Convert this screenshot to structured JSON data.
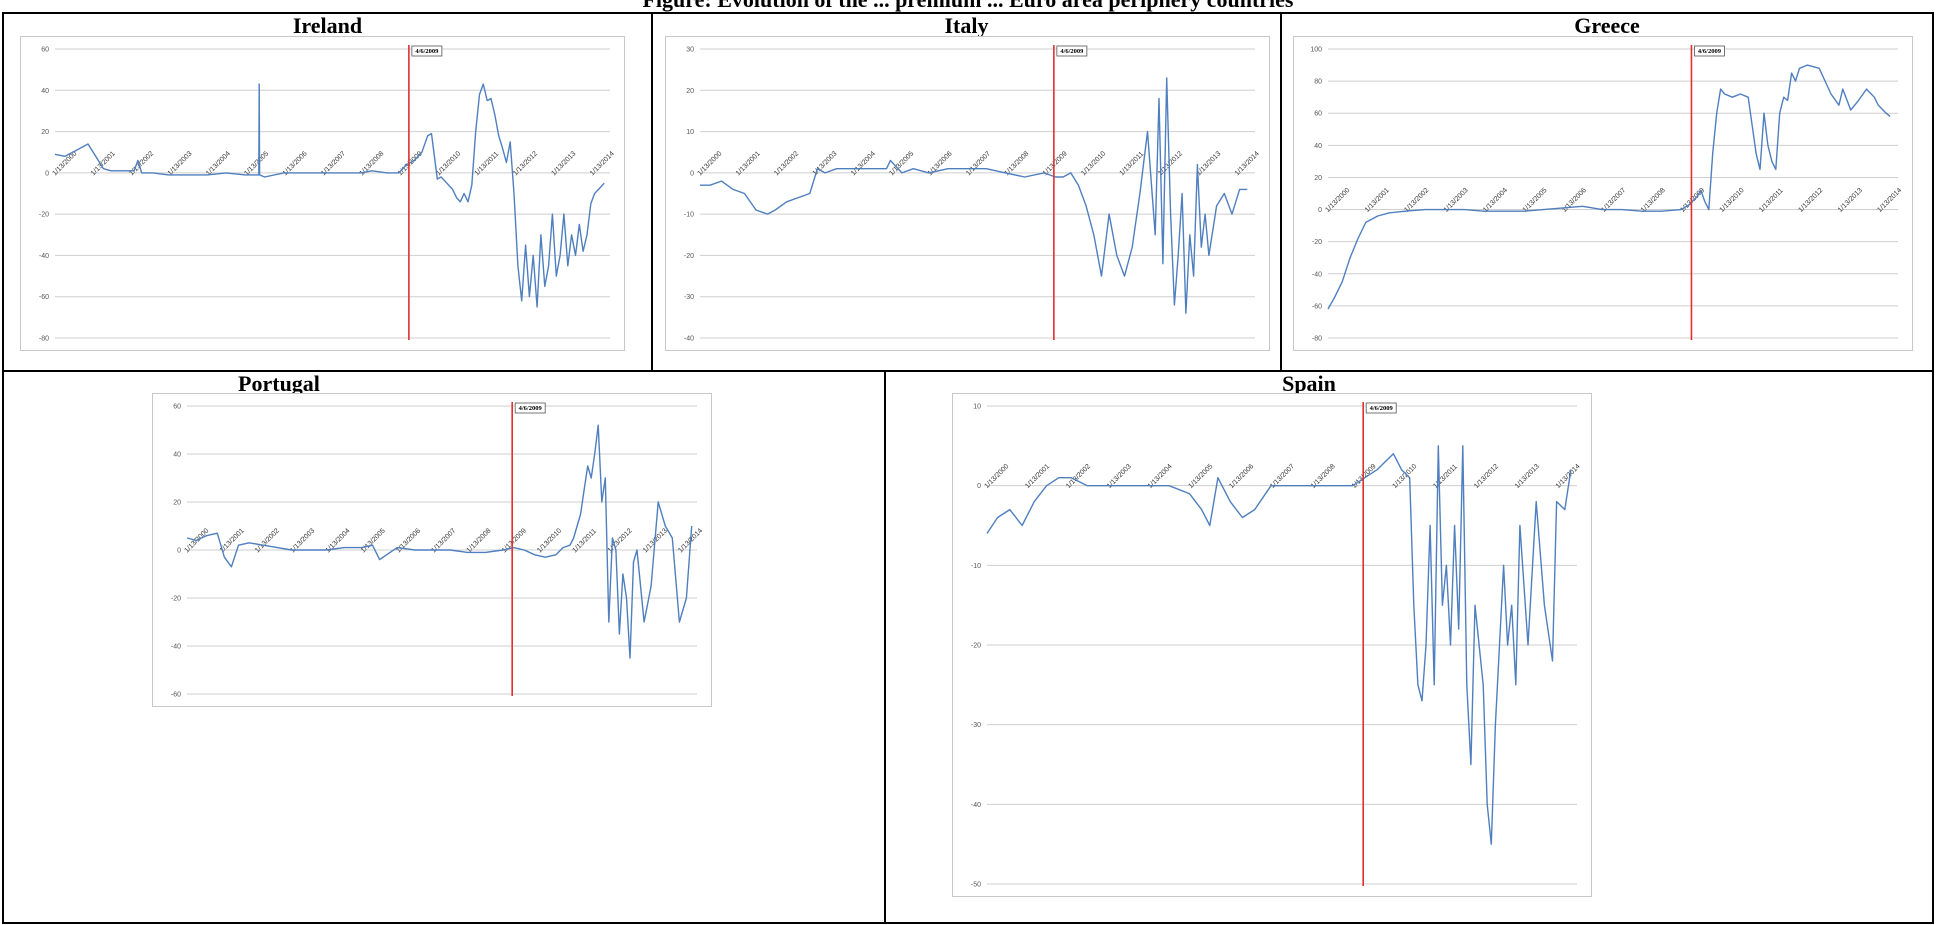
{
  "page": {
    "cutoff_heading": "Figure: Evolution of the ... premium ... Euro area periphery countries"
  },
  "chart_data": [
    {
      "type": "line",
      "title": "Ireland",
      "ylim": [
        -80,
        60
      ],
      "yticks": [
        -80,
        -60,
        -40,
        -20,
        0,
        20,
        40,
        60
      ],
      "x_tick_labels": [
        "1/13/2000",
        "1/13/2001",
        "1/13/2002",
        "1/13/2003",
        "1/13/2004",
        "1/13/2005",
        "1/13/2006",
        "1/13/2007",
        "1/13/2008",
        "1/13/2009",
        "1/13/2010",
        "1/13/2011",
        "1/13/2012",
        "1/13/2013",
        "1/13/2014"
      ],
      "xlim": [
        2000.04,
        2014.5
      ],
      "grid": true,
      "marker": {
        "x": 2009.26,
        "label": "4/6/2009",
        "color": "#e03030"
      },
      "series": [
        {
          "color": "#4f7fbf",
          "x": [
            2000.04,
            2000.3,
            2000.6,
            2000.9,
            2001.1,
            2001.3,
            2001.5,
            2001.8,
            2002.1,
            2002.2,
            2002.3,
            2002.6,
            2003.0,
            2003.5,
            2004.0,
            2004.5,
            2005.0,
            2005.35,
            2005.36,
            2005.37,
            2005.5,
            2006.0,
            2006.5,
            2007.0,
            2007.5,
            2008.0,
            2008.3,
            2008.7,
            2009.0,
            2009.2,
            2009.4,
            2009.6,
            2009.75,
            2009.85,
            2010.0,
            2010.1,
            2010.25,
            2010.4,
            2010.5,
            2010.6,
            2010.7,
            2010.8,
            2010.9,
            2011.0,
            2011.1,
            2011.2,
            2011.3,
            2011.4,
            2011.5,
            2011.6,
            2011.7,
            2011.8,
            2011.9,
            2012.0,
            2012.1,
            2012.2,
            2012.3,
            2012.4,
            2012.5,
            2012.6,
            2012.7,
            2012.8,
            2012.9,
            2013.0,
            2013.1,
            2013.2,
            2013.3,
            2013.4,
            2013.5,
            2013.6,
            2013.7,
            2013.8,
            2013.9,
            2014.0,
            2014.1,
            2014.2,
            2014.35
          ],
          "y": [
            9,
            8,
            11,
            14,
            8,
            2,
            1,
            1,
            1,
            6,
            0,
            0,
            -1,
            -1,
            -1,
            0,
            -1,
            -1,
            43,
            -1,
            -2,
            0,
            0,
            0,
            0,
            0,
            1,
            0,
            0,
            4,
            6,
            10,
            18,
            19,
            -3,
            -2,
            -5,
            -8,
            -12,
            -14,
            -10,
            -14,
            -6,
            20,
            38,
            43,
            35,
            36,
            28,
            18,
            12,
            5,
            15,
            -10,
            -45,
            -62,
            -35,
            -60,
            -40,
            -65,
            -30,
            -55,
            -45,
            -20,
            -50,
            -40,
            -20,
            -45,
            -30,
            -40,
            -25,
            -38,
            -30,
            -15,
            -10,
            -8,
            -5
          ]
        }
      ]
    },
    {
      "type": "line",
      "title": "Italy",
      "ylim": [
        -40,
        30
      ],
      "yticks": [
        -40,
        -30,
        -20,
        -10,
        0,
        10,
        20,
        30
      ],
      "x_tick_labels": [
        "1/13/2000",
        "1/13/2001",
        "1/13/2002",
        "1/13/2003",
        "1/13/2004",
        "1/13/2005",
        "1/13/2006",
        "1/13/2007",
        "1/13/2008",
        "1/13/2009",
        "1/13/2010",
        "1/13/2011",
        "1/13/2012",
        "1/13/2013",
        "1/13/2014"
      ],
      "xlim": [
        2000.04,
        2014.5
      ],
      "grid": true,
      "marker": {
        "x": 2009.26,
        "label": "4/6/2009",
        "color": "#e03030"
      },
      "series": [
        {
          "color": "#4f7fbf",
          "x": [
            2000.04,
            2000.3,
            2000.6,
            2000.9,
            2001.2,
            2001.5,
            2001.8,
            2002.0,
            2002.3,
            2002.6,
            2002.9,
            2003.1,
            2003.3,
            2003.6,
            2004.0,
            2004.5,
            2004.9,
            2005.0,
            2005.3,
            2005.6,
            2006.0,
            2006.5,
            2007.0,
            2007.5,
            2008.0,
            2008.5,
            2009.0,
            2009.3,
            2009.5,
            2009.7,
            2009.9,
            2010.1,
            2010.3,
            2010.5,
            2010.7,
            2010.9,
            2011.1,
            2011.3,
            2011.5,
            2011.7,
            2011.9,
            2012.0,
            2012.1,
            2012.2,
            2012.3,
            2012.4,
            2012.5,
            2012.6,
            2012.7,
            2012.8,
            2012.9,
            2013.0,
            2013.1,
            2013.2,
            2013.3,
            2013.5,
            2013.7,
            2013.9,
            2014.1,
            2014.3
          ],
          "y": [
            -3,
            -3,
            -2,
            -4,
            -5,
            -9,
            -10,
            -9,
            -7,
            -6,
            -5,
            1,
            0,
            1,
            1,
            1,
            1,
            3,
            0,
            1,
            0,
            1,
            1,
            1,
            0,
            -1,
            0,
            -1,
            -1,
            0,
            -3,
            -8,
            -15,
            -25,
            -10,
            -20,
            -25,
            -18,
            -5,
            10,
            -15,
            18,
            -22,
            23,
            -10,
            -32,
            -20,
            -5,
            -34,
            -15,
            -25,
            2,
            -18,
            -10,
            -20,
            -8,
            -5,
            -10,
            -4,
            -4
          ]
        }
      ]
    },
    {
      "type": "line",
      "title": "Greece",
      "ylim": [
        -80,
        100
      ],
      "yticks": [
        -80,
        -60,
        -40,
        -20,
        0,
        20,
        40,
        60,
        80,
        100
      ],
      "x_tick_labels": [
        "1/13/2000",
        "1/13/2001",
        "1/13/2002",
        "1/13/2003",
        "1/13/2004",
        "1/13/2005",
        "1/13/2006",
        "1/13/2007",
        "1/13/2008",
        "1/13/2009",
        "1/13/2010",
        "1/13/2011",
        "1/13/2012",
        "1/13/2013",
        "1/13/2014"
      ],
      "xlim": [
        2000.04,
        2014.5
      ],
      "grid": true,
      "marker": {
        "x": 2009.26,
        "label": "4/6/2009",
        "color": "#e03030"
      },
      "series": [
        {
          "color": "#4f7fbf",
          "x": [
            2000.04,
            2000.2,
            2000.4,
            2000.6,
            2000.8,
            2001.0,
            2001.3,
            2001.6,
            2002.0,
            2002.5,
            2003.0,
            2003.5,
            2004.0,
            2004.5,
            2005.0,
            2005.5,
            2006.0,
            2006.5,
            2007.0,
            2007.5,
            2008.0,
            2008.5,
            2009.0,
            2009.2,
            2009.4,
            2009.5,
            2009.6,
            2009.7,
            2009.8,
            2009.9,
            2010.0,
            2010.1,
            2010.3,
            2010.5,
            2010.7,
            2010.9,
            2011.0,
            2011.1,
            2011.2,
            2011.3,
            2011.4,
            2011.5,
            2011.6,
            2011.7,
            2011.8,
            2011.9,
            2012.0,
            2012.2,
            2012.5,
            2012.8,
            2013.0,
            2013.1,
            2013.3,
            2013.5,
            2013.7,
            2013.9,
            2014.0,
            2014.2,
            2014.3
          ],
          "y": [
            -62,
            -55,
            -45,
            -30,
            -18,
            -8,
            -4,
            -2,
            -1,
            0,
            0,
            0,
            -1,
            -1,
            -1,
            0,
            1,
            2,
            0,
            0,
            -1,
            -1,
            0,
            3,
            8,
            12,
            5,
            0,
            35,
            60,
            75,
            72,
            70,
            72,
            70,
            35,
            25,
            60,
            40,
            30,
            25,
            60,
            70,
            68,
            85,
            80,
            88,
            90,
            88,
            72,
            65,
            75,
            62,
            68,
            75,
            70,
            65,
            60,
            58
          ]
        }
      ]
    },
    {
      "type": "line",
      "title": "Portugal",
      "ylim": [
        -60,
        60
      ],
      "yticks": [
        -60,
        -40,
        -20,
        0,
        20,
        40,
        60
      ],
      "x_tick_labels": [
        "1/13/2000",
        "1/13/2001",
        "1/13/2002",
        "1/13/2003",
        "1/13/2004",
        "1/13/2005",
        "1/13/2006",
        "1/13/2007",
        "1/13/2008",
        "1/13/2009",
        "1/13/2010",
        "1/13/2011",
        "1/13/2012",
        "1/13/2013",
        "1/13/2014"
      ],
      "xlim": [
        2000.04,
        2014.5
      ],
      "grid": true,
      "marker": {
        "x": 2009.26,
        "label": "4/6/2009",
        "color": "#e03030"
      },
      "series": [
        {
          "color": "#4f7fbf",
          "x": [
            2000.04,
            2000.3,
            2000.6,
            2000.9,
            2001.1,
            2001.3,
            2001.5,
            2001.8,
            2002.2,
            2002.6,
            2003.0,
            2003.5,
            2004.0,
            2004.5,
            2005.0,
            2005.3,
            2005.5,
            2006.0,
            2006.5,
            2007.0,
            2007.5,
            2008.0,
            2008.5,
            2009.0,
            2009.3,
            2009.6,
            2009.9,
            2010.2,
            2010.5,
            2010.7,
            2010.9,
            2011.0,
            2011.1,
            2011.2,
            2011.3,
            2011.4,
            2011.5,
            2011.6,
            2011.7,
            2011.8,
            2011.9,
            2012.0,
            2012.1,
            2012.2,
            2012.3,
            2012.4,
            2012.5,
            2012.6,
            2012.7,
            2012.8,
            2013.0,
            2013.2,
            2013.4,
            2013.6,
            2013.8,
            2014.0,
            2014.2,
            2014.35
          ],
          "y": [
            5,
            4,
            6,
            7,
            -3,
            -7,
            2,
            3,
            2,
            1,
            0,
            0,
            0,
            1,
            1,
            2,
            -4,
            1,
            0,
            0,
            0,
            -1,
            -1,
            0,
            1,
            0,
            -2,
            -3,
            -2,
            1,
            2,
            5,
            10,
            15,
            25,
            35,
            30,
            40,
            52,
            20,
            30,
            -30,
            5,
            0,
            -35,
            -10,
            -20,
            -45,
            -5,
            0,
            -30,
            -15,
            20,
            10,
            5,
            -30,
            -20,
            10
          ]
        }
      ]
    },
    {
      "type": "line",
      "title": "Spain",
      "ylim": [
        -50,
        10
      ],
      "yticks": [
        -50,
        -40,
        -30,
        -20,
        -10,
        0,
        10
      ],
      "x_tick_labels": [
        "1/13/2000",
        "1/13/2001",
        "1/13/2002",
        "1/13/2003",
        "1/13/2004",
        "1/13/2005",
        "1/13/2006",
        "1/13/2007",
        "1/13/2008",
        "1/13/2009",
        "1/13/2010",
        "1/13/2011",
        "1/13/2012",
        "1/13/2013",
        "1/13/2014"
      ],
      "xlim": [
        2000.04,
        2014.5
      ],
      "grid": true,
      "marker": {
        "x": 2009.26,
        "label": "4/6/2009",
        "color": "#e03030"
      },
      "series": [
        {
          "color": "#4f7fbf",
          "x": [
            2000.04,
            2000.3,
            2000.6,
            2000.9,
            2001.2,
            2001.5,
            2001.8,
            2002.1,
            2002.5,
            2003.0,
            2003.5,
            2004.0,
            2004.5,
            2005.0,
            2005.3,
            2005.5,
            2005.7,
            2006.0,
            2006.3,
            2006.6,
            2007.0,
            2007.5,
            2008.0,
            2008.5,
            2009.0,
            2009.3,
            2009.6,
            2009.8,
            2010.0,
            2010.2,
            2010.4,
            2010.5,
            2010.6,
            2010.7,
            2010.8,
            2010.9,
            2011.0,
            2011.1,
            2011.2,
            2011.3,
            2011.4,
            2011.5,
            2011.6,
            2011.7,
            2011.8,
            2011.9,
            2012.0,
            2012.1,
            2012.2,
            2012.3,
            2012.4,
            2012.5,
            2012.6,
            2012.7,
            2012.8,
            2012.9,
            2013.0,
            2013.1,
            2013.3,
            2013.5,
            2013.7,
            2013.9,
            2014.0,
            2014.2,
            2014.35
          ],
          "y": [
            -6,
            -4,
            -3,
            -5,
            -2,
            0,
            1,
            1,
            0,
            0,
            0,
            0,
            0,
            -1,
            -3,
            -5,
            1,
            -2,
            -4,
            -3,
            0,
            0,
            0,
            0,
            0,
            1,
            2,
            3,
            4,
            2,
            1,
            -15,
            -25,
            -27,
            -20,
            -5,
            -25,
            5,
            -15,
            -10,
            -20,
            -5,
            -18,
            5,
            -25,
            -35,
            -15,
            -20,
            -25,
            -40,
            -45,
            -30,
            -20,
            -10,
            -20,
            -15,
            -25,
            -5,
            -20,
            -2,
            -15,
            -22,
            -2,
            -3,
            2
          ]
        }
      ]
    }
  ]
}
